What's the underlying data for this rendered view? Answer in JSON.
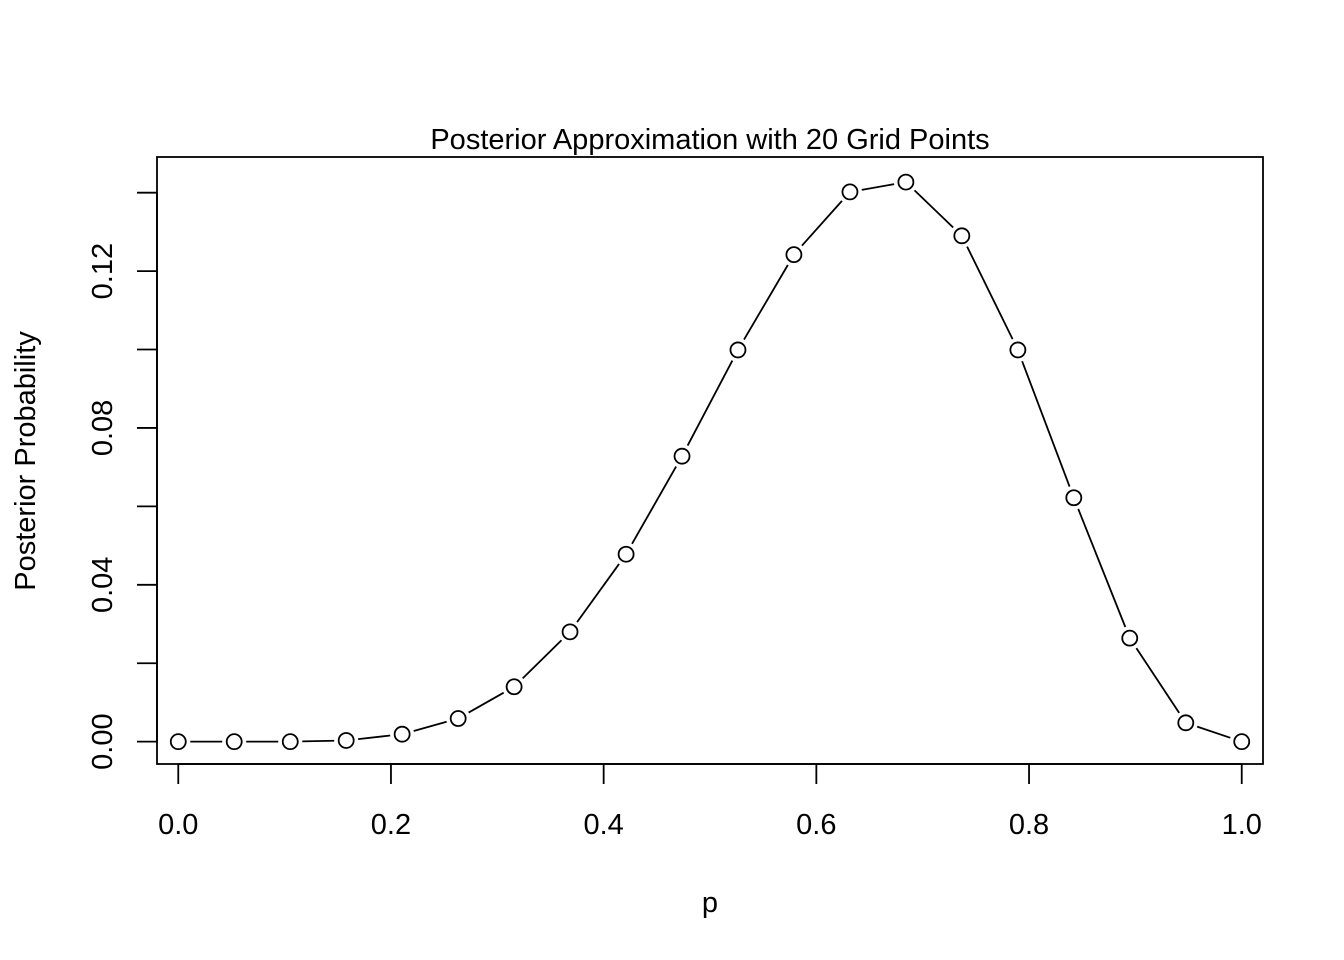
{
  "chart_data": {
    "type": "line",
    "title": "Posterior Approximation with 20 Grid Points",
    "xlabel": "p",
    "ylabel": "Posterior Probability",
    "xlim": [
      -0.02,
      1.02
    ],
    "ylim": [
      -0.0057,
      0.1491
    ],
    "grid": false,
    "legend": "none",
    "marker": "open-circle",
    "line_color": "#000000",
    "x_ticks": [
      {
        "value": 0.0,
        "label": "0.0"
      },
      {
        "value": 0.2,
        "label": "0.2"
      },
      {
        "value": 0.4,
        "label": "0.4"
      },
      {
        "value": 0.6,
        "label": "0.6"
      },
      {
        "value": 0.8,
        "label": "0.8"
      },
      {
        "value": 1.0,
        "label": "1.0"
      }
    ],
    "y_ticks": [
      {
        "value": 0.0,
        "label": "0.00"
      },
      {
        "value": 0.02,
        "label": ""
      },
      {
        "value": 0.04,
        "label": "0.04"
      },
      {
        "value": 0.06,
        "label": ""
      },
      {
        "value": 0.08,
        "label": "0.08"
      },
      {
        "value": 0.1,
        "label": ""
      },
      {
        "value": 0.12,
        "label": "0.12"
      },
      {
        "value": 0.14,
        "label": ""
      }
    ],
    "x": [
      0.0,
      0.0526,
      0.1053,
      0.1579,
      0.2105,
      0.2632,
      0.3158,
      0.3684,
      0.4211,
      0.4737,
      0.5263,
      0.5789,
      0.6316,
      0.6842,
      0.7368,
      0.7895,
      0.8421,
      0.8947,
      0.9474,
      1.0
    ],
    "y": [
      0.0,
      0.0,
      0.0,
      0.0003,
      0.0019,
      0.0059,
      0.014,
      0.028,
      0.0478,
      0.0728,
      0.0999,
      0.1242,
      0.1402,
      0.1427,
      0.129,
      0.0999,
      0.0622,
      0.0264,
      0.0048,
      0.0
    ]
  }
}
